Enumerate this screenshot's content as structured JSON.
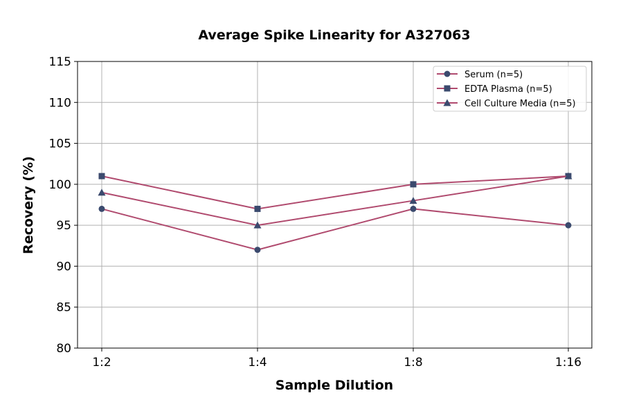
{
  "chart_data": {
    "type": "line",
    "title": "Average Spike Linearity for A327063",
    "xlabel": "Sample Dilution",
    "ylabel": "Recovery (%)",
    "categories": [
      "1:2",
      "1:4",
      "1:8",
      "1:16"
    ],
    "ylim": [
      80,
      115
    ],
    "yticks": [
      80,
      85,
      90,
      95,
      100,
      105,
      110,
      115
    ],
    "grid": true,
    "legend_position": "top-right",
    "line_color": "#b04a6e",
    "marker_color": "#3b4a6e",
    "series": [
      {
        "name": "Serum (n=5)",
        "marker": "circle",
        "values": [
          97,
          92,
          97,
          95
        ]
      },
      {
        "name": "EDTA Plasma (n=5)",
        "marker": "square",
        "values": [
          101,
          97,
          100,
          101
        ]
      },
      {
        "name": "Cell Culture Media (n=5)",
        "marker": "triangle",
        "values": [
          99,
          95,
          98,
          101
        ]
      }
    ]
  }
}
